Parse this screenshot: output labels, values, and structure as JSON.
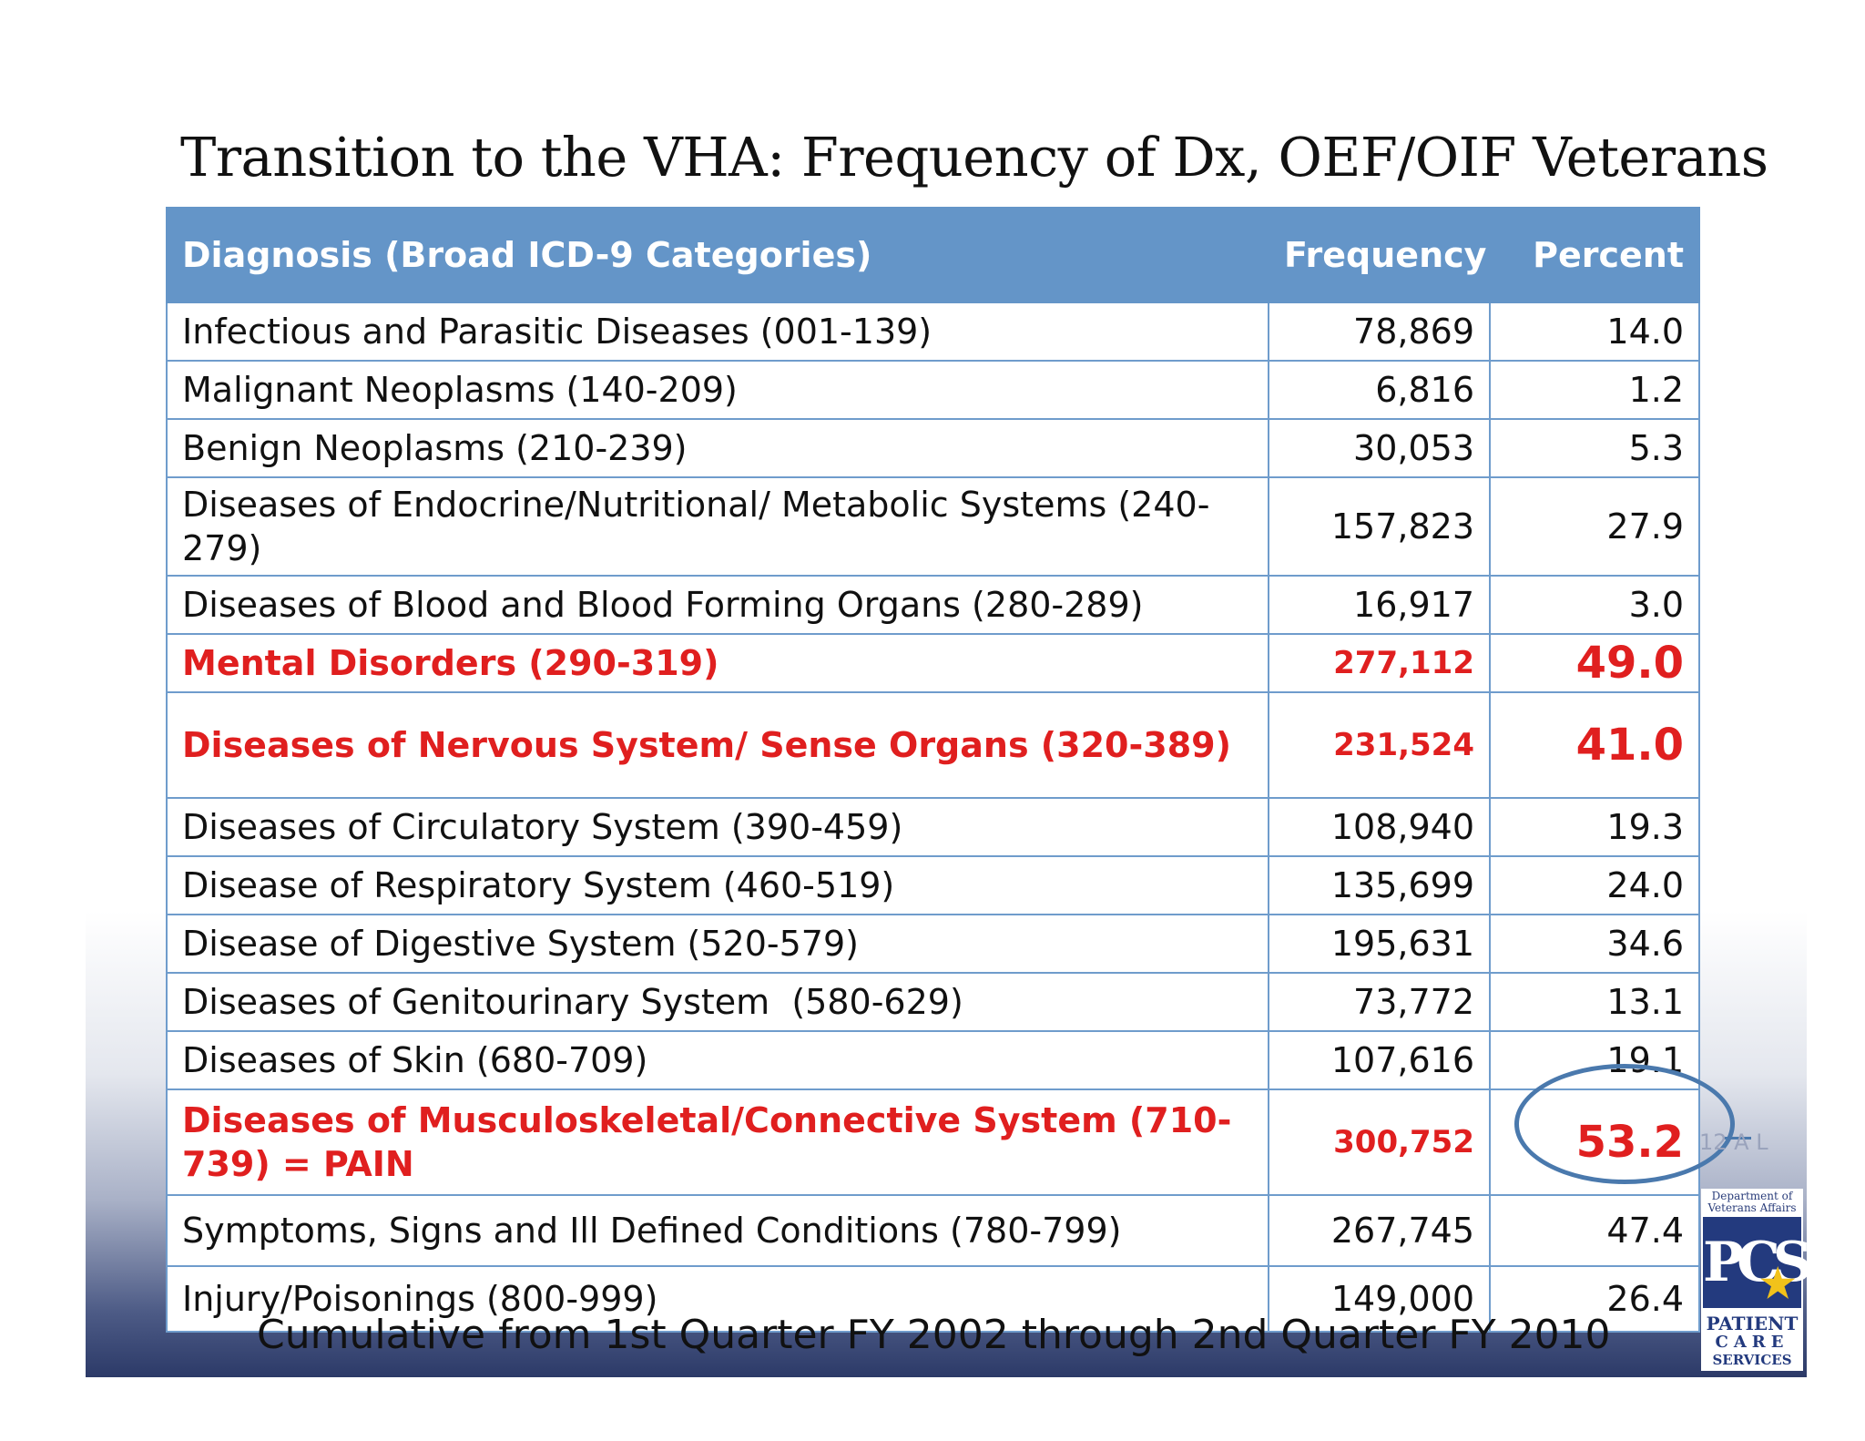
{
  "title": "Transition to the VHA: Frequency of Dx,  OEF/OIF Veterans",
  "table": {
    "headers": {
      "diagnosis": "Diagnosis (Broad ICD-9 Categories)",
      "frequency": "Frequency",
      "percent": "Percent"
    },
    "rows": [
      {
        "diagnosis": "Infectious and Parasitic Diseases (001-139)",
        "frequency": "78,869",
        "percent": "14.0"
      },
      {
        "diagnosis": "Malignant Neoplasms (140-209)",
        "frequency": "6,816",
        "percent": "1.2"
      },
      {
        "diagnosis": "Benign Neoplasms (210-239)",
        "frequency": "30,053",
        "percent": "5.3"
      },
      {
        "diagnosis": "Diseases of Endocrine/Nutritional/ Metabolic Systems (240-279)",
        "frequency": "157,823",
        "percent": "27.9"
      },
      {
        "diagnosis": "Diseases of Blood and Blood Forming Organs (280-289)",
        "frequency": "16,917",
        "percent": "3.0"
      },
      {
        "diagnosis": "Mental Disorders (290-319)",
        "frequency": "277,112",
        "percent": "49.0"
      },
      {
        "diagnosis": "Diseases of Nervous System/ Sense Organs (320-389)",
        "frequency": "231,524",
        "percent": "41.0"
      },
      {
        "diagnosis": "Diseases of Circulatory System (390-459)",
        "frequency": "108,940",
        "percent": "19.3"
      },
      {
        "diagnosis": "Disease of Respiratory System (460-519)",
        "frequency": "135,699",
        "percent": "24.0"
      },
      {
        "diagnosis": "Disease of Digestive System (520-579)",
        "frequency": "195,631",
        "percent": "34.6"
      },
      {
        "diagnosis": "Diseases of Genitourinary System  (580-629)",
        "frequency": "73,772",
        "percent": "13.1"
      },
      {
        "diagnosis": "Diseases of Skin (680-709)",
        "frequency": "107,616",
        "percent": "19.1"
      },
      {
        "diagnosis": "Diseases of Musculoskeletal/Connective System (710-739) = PAIN",
        "frequency": "300,752",
        "percent": "53.2"
      },
      {
        "diagnosis": "Symptoms, Signs and Ill Defined Conditions (780-799)",
        "frequency": "267,745",
        "percent": "47.4"
      },
      {
        "diagnosis": "Injury/Poisonings (800-999)",
        "frequency": "149,000",
        "percent": "26.4"
      }
    ]
  },
  "footer": "Cumulative from 1st Quarter FY 2002 through  2nd Quarter FY 2010",
  "logo": {
    "department": "Department of Veterans Affairs",
    "mark": "PCS",
    "line1": "PATIENT",
    "line2": "CARE",
    "line3": "SERVICES"
  },
  "edge_text": "12 A L",
  "colors": {
    "header_bg": "#6495c8",
    "highlight_text": "#e01f1f",
    "circle": "#4a79ad",
    "logo_blue": "#233a7e",
    "logo_star": "#f2c21a"
  }
}
